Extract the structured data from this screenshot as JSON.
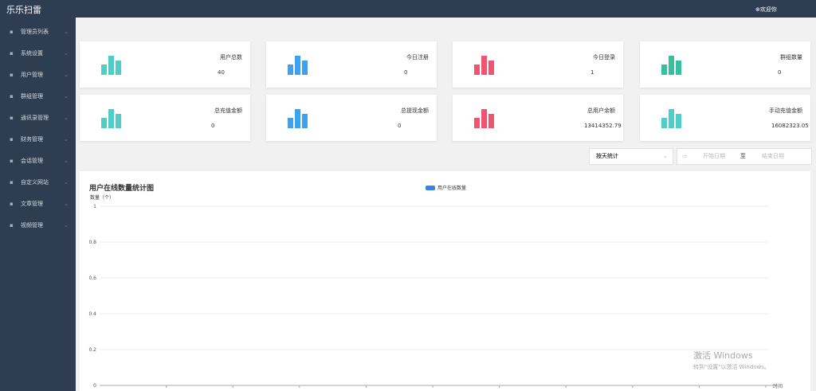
{
  "header": {
    "title": "乐乐扫雷",
    "welcome": "欢迎你"
  },
  "sidebar": {
    "items": [
      "管理员列表",
      "系统设置",
      "用户管理",
      "群组管理",
      "通讯录管理",
      "财务管理",
      "会话管理",
      "自定义网站",
      "文章管理",
      "视频管理"
    ]
  },
  "cards": [
    {
      "label": "用户总数",
      "value": 40,
      "color": "#4fcdc6"
    },
    {
      "label": "今日注册",
      "value": 0,
      "color": "#3ba1f0"
    },
    {
      "label": "今日登录",
      "value": 1,
      "color": "#ef5470"
    },
    {
      "label": "群组数量",
      "value": 0,
      "color": "#36c0a0"
    },
    {
      "label": "总充值金额",
      "value": 0,
      "color": "#4fcdc6"
    },
    {
      "label": "总提现金额",
      "value": 0,
      "color": "#3ba1f0"
    },
    {
      "label": "总用户余额",
      "value": 13414352.79,
      "color": "#ef5470"
    },
    {
      "label": "手动充值金额",
      "value": 16082323.05,
      "color": "#4fcdc6"
    }
  ],
  "filter": {
    "mode": "按天统计",
    "start": "开始日期",
    "separator": "至",
    "end": "结束日期"
  },
  "chart": {
    "type": "line",
    "title": "用户在线数量统计图",
    "y_label": "数量（个）",
    "x_label": "时间",
    "series": [
      {
        "name": "用户在线数量",
        "color": "#3b82e6",
        "values": []
      }
    ],
    "ylim": [
      0,
      1
    ],
    "yticks": [
      0,
      0.2,
      0.4,
      0.6,
      0.8,
      1
    ],
    "grid": true
  },
  "watermark": {
    "title": "激活 Windows",
    "subtitle": "转到\"设置\"以激活 Windows。"
  }
}
